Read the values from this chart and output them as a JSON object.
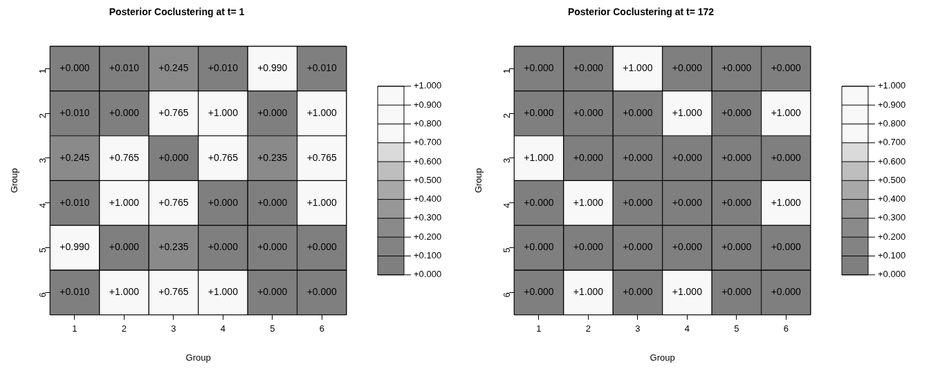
{
  "chart_data": [
    {
      "type": "heatmap",
      "title": "Posterior Coclustering at t= 1",
      "xlabel": "Group",
      "ylabel": "Group",
      "categories": [
        "1",
        "2",
        "3",
        "4",
        "5",
        "6"
      ],
      "y_categories": [
        "1",
        "2",
        "3",
        "4",
        "5",
        "6"
      ],
      "cells": [
        [
          0,
          0.01,
          0.245,
          0.01,
          0.99,
          0.01
        ],
        [
          0.01,
          0,
          0.765,
          1,
          0,
          1
        ],
        [
          0.245,
          0.765,
          0,
          0.765,
          0.235,
          0.765
        ],
        [
          0.01,
          1,
          0.765,
          0,
          0,
          1
        ],
        [
          0.99,
          0,
          0.235,
          0,
          0,
          0
        ],
        [
          0.01,
          1,
          0.765,
          1,
          0,
          0
        ]
      ],
      "cell_labels": [
        [
          "+0.000",
          "+0.010",
          "+0.245",
          "+0.010",
          "+0.990",
          "+0.010"
        ],
        [
          "+0.010",
          "+0.000",
          "+0.765",
          "+1.000",
          "+0.000",
          "+1.000"
        ],
        [
          "+0.245",
          "+0.765",
          "+0.000",
          "+0.765",
          "+0.235",
          "+0.765"
        ],
        [
          "+0.010",
          "+1.000",
          "+0.765",
          "+0.000",
          "+0.000",
          "+1.000"
        ],
        [
          "+0.990",
          "+0.000",
          "+0.235",
          "+0.000",
          "+0.000",
          "+0.000"
        ],
        [
          "+0.010",
          "+1.000",
          "+0.765",
          "+1.000",
          "+0.000",
          "+0.000"
        ]
      ],
      "colors": [
        "#7f7f7f",
        "#838383",
        "#8a8a8a",
        "#979797",
        "#a8a8a8",
        "#bebebe",
        "#dadada",
        "#f8f8f8",
        "#f8f8f8",
        "#f8f8f8"
      ],
      "clim": [
        0,
        1
      ],
      "cticks": [
        {
          "value": 0,
          "label": "+0.000"
        },
        {
          "value": 0.1,
          "label": "+0.100"
        },
        {
          "value": 0.2,
          "label": "+0.200"
        },
        {
          "value": 0.3,
          "label": "+0.300"
        },
        {
          "value": 0.4,
          "label": "+0.400"
        },
        {
          "value": 0.5,
          "label": "+0.500"
        },
        {
          "value": 0.6,
          "label": "+0.600"
        },
        {
          "value": 0.7,
          "label": "+0.700"
        },
        {
          "value": 0.8,
          "label": "+0.800"
        },
        {
          "value": 0.9,
          "label": "+0.900"
        },
        {
          "value": 1,
          "label": "+1.000"
        }
      ]
    },
    {
      "type": "heatmap",
      "title": "Posterior Coclustering at t= 172",
      "xlabel": "Group",
      "ylabel": "Group",
      "categories": [
        "1",
        "2",
        "3",
        "4",
        "5",
        "6"
      ],
      "y_categories": [
        "1",
        "2",
        "3",
        "4",
        "5",
        "6"
      ],
      "cells": [
        [
          0,
          0,
          1,
          0,
          0,
          0
        ],
        [
          0,
          0,
          0,
          1,
          0,
          1
        ],
        [
          1,
          0,
          0,
          0,
          0,
          0
        ],
        [
          0,
          1,
          0,
          0,
          0,
          1
        ],
        [
          0,
          0,
          0,
          0,
          0,
          0
        ],
        [
          0,
          1,
          0,
          1,
          0,
          0
        ]
      ],
      "cell_labels": [
        [
          "+0.000",
          "+0.000",
          "+1.000",
          "+0.000",
          "+0.000",
          "+0.000"
        ],
        [
          "+0.000",
          "+0.000",
          "+0.000",
          "+1.000",
          "+0.000",
          "+1.000"
        ],
        [
          "+1.000",
          "+0.000",
          "+0.000",
          "+0.000",
          "+0.000",
          "+0.000"
        ],
        [
          "+0.000",
          "+1.000",
          "+0.000",
          "+0.000",
          "+0.000",
          "+1.000"
        ],
        [
          "+0.000",
          "+0.000",
          "+0.000",
          "+0.000",
          "+0.000",
          "+0.000"
        ],
        [
          "+0.000",
          "+1.000",
          "+0.000",
          "+1.000",
          "+0.000",
          "+0.000"
        ]
      ],
      "colors": [
        "#7f7f7f",
        "#838383",
        "#8a8a8a",
        "#979797",
        "#a8a8a8",
        "#bebebe",
        "#dadada",
        "#f8f8f8",
        "#f8f8f8",
        "#f8f8f8"
      ],
      "clim": [
        0,
        1
      ],
      "cticks": [
        {
          "value": 0,
          "label": "+0.000"
        },
        {
          "value": 0.1,
          "label": "+0.100"
        },
        {
          "value": 0.2,
          "label": "+0.200"
        },
        {
          "value": 0.3,
          "label": "+0.300"
        },
        {
          "value": 0.4,
          "label": "+0.400"
        },
        {
          "value": 0.5,
          "label": "+0.500"
        },
        {
          "value": 0.6,
          "label": "+0.600"
        },
        {
          "value": 0.7,
          "label": "+0.700"
        },
        {
          "value": 0.8,
          "label": "+0.800"
        },
        {
          "value": 0.9,
          "label": "+0.900"
        },
        {
          "value": 1,
          "label": "+1.000"
        }
      ]
    }
  ]
}
